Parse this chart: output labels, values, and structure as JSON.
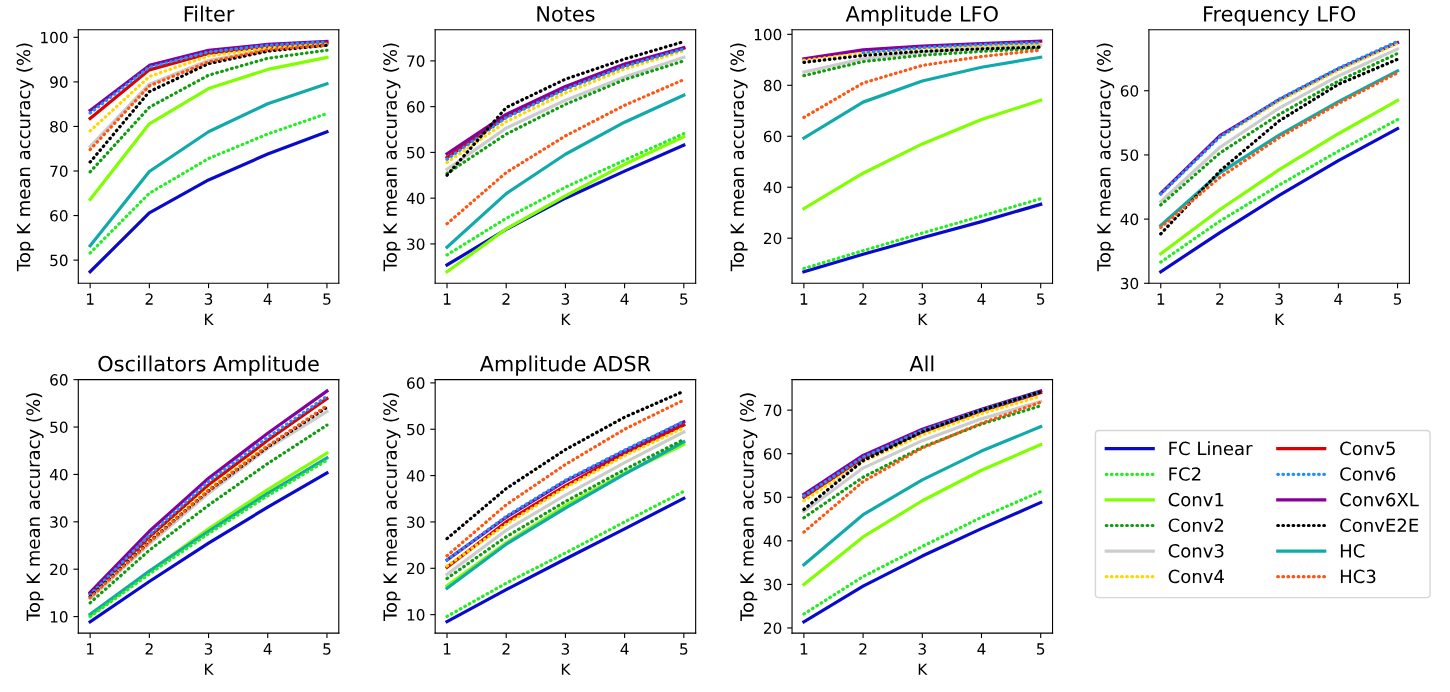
{
  "chart_data": [
    {
      "type": "line",
      "title": "Filter",
      "xlabel": "K",
      "ylabel": "Top K mean accuracy (%)",
      "x": [
        1,
        2,
        3,
        4,
        5
      ],
      "xlim": [
        0.8,
        5.2
      ],
      "xticks": [
        1,
        2,
        3,
        4,
        5
      ],
      "ylim": [
        44.8,
        101.7
      ],
      "yticks": [
        50,
        60,
        70,
        80,
        90,
        100
      ],
      "marker": "none",
      "series": [
        {
          "color": "#0a0acc",
          "line_style": "solid",
          "values": [
            47.4,
            60.6,
            68,
            73.8,
            78.8
          ]
        },
        {
          "color": "#22ee22",
          "line_style": "dotted",
          "values": [
            51.6,
            65,
            72.8,
            78.3,
            82.9
          ]
        },
        {
          "color": "#7fff00",
          "line_style": "solid",
          "values": [
            63.6,
            80.6,
            88.5,
            92.8,
            95.5
          ]
        },
        {
          "color": "#0f9d0f",
          "line_style": "dotted",
          "values": [
            69.8,
            84.3,
            91.5,
            95.3,
            97.1
          ]
        },
        {
          "color": "#cccccc",
          "line_style": "solid",
          "values": [
            75.5,
            89.5,
            94.8,
            97.2,
            98.3
          ]
        },
        {
          "color": "#ffd700",
          "line_style": "dotted",
          "values": [
            79,
            91.2,
            95.8,
            97.6,
            98.5
          ]
        },
        {
          "color": "#dd0000",
          "line_style": "solid",
          "values": [
            81.8,
            92.7,
            96.4,
            97.9,
            98.7
          ]
        },
        {
          "color": "#1e90ff",
          "line_style": "dotted",
          "values": [
            83,
            93.3,
            96.7,
            98.2,
            99
          ]
        },
        {
          "color": "#880099",
          "line_style": "solid",
          "values": [
            83.6,
            93.7,
            97.1,
            98.4,
            99.1
          ]
        },
        {
          "color": "#000000",
          "line_style": "dotted",
          "values": [
            72,
            87.8,
            94.1,
            96.9,
            98.2
          ]
        },
        {
          "color": "#11aaaa",
          "line_style": "solid",
          "values": [
            53.2,
            69.9,
            78.8,
            85.1,
            89.6
          ]
        },
        {
          "color": "#ff5511",
          "line_style": "dotted",
          "values": [
            74.8,
            89.1,
            94.5,
            97.2,
            98.2
          ]
        }
      ]
    },
    {
      "type": "line",
      "title": "Notes",
      "xlabel": "K",
      "ylabel": "Top K mean accuracy (%)",
      "x": [
        1,
        2,
        3,
        4,
        5
      ],
      "xlim": [
        0.8,
        5.2
      ],
      "xticks": [
        1,
        2,
        3,
        4,
        5
      ],
      "ylim": [
        21.4,
        76.8
      ],
      "yticks": [
        30,
        40,
        50,
        60,
        70
      ],
      "marker": "none",
      "series": [
        {
          "color": "#0a0acc",
          "line_style": "solid",
          "values": [
            25.4,
            33.2,
            40,
            45.9,
            51.6
          ]
        },
        {
          "color": "#22ee22",
          "line_style": "dotted",
          "values": [
            27.6,
            35.6,
            42.4,
            48.3,
            54.1
          ]
        },
        {
          "color": "#7fff00",
          "line_style": "solid",
          "values": [
            23.9,
            33.3,
            40.5,
            47.4,
            53.4
          ]
        },
        {
          "color": "#0f9d0f",
          "line_style": "dotted",
          "values": [
            45.4,
            54,
            60.5,
            65.9,
            70
          ]
        },
        {
          "color": "#cccccc",
          "line_style": "solid",
          "values": [
            46.3,
            55.3,
            61.4,
            66.5,
            70.8
          ]
        },
        {
          "color": "#ffd700",
          "line_style": "dotted",
          "values": [
            47.8,
            56.7,
            63,
            68.2,
            72.2
          ]
        },
        {
          "color": "#dd0000",
          "line_style": "solid",
          "values": [
            48.9,
            57.8,
            64,
            69,
            72.8
          ]
        },
        {
          "color": "#1e90ff",
          "line_style": "dotted",
          "values": [
            48.5,
            57.6,
            63.8,
            68.8,
            72.6
          ]
        },
        {
          "color": "#880099",
          "line_style": "solid",
          "values": [
            49.7,
            58.3,
            64.4,
            69.3,
            72.9
          ]
        },
        {
          "color": "#000000",
          "line_style": "dotted",
          "values": [
            45,
            59.8,
            66,
            70.4,
            74.2
          ]
        },
        {
          "color": "#11aaaa",
          "line_style": "solid",
          "values": [
            29.3,
            41,
            49.6,
            56.6,
            62.5
          ]
        },
        {
          "color": "#ff5511",
          "line_style": "dotted",
          "values": [
            34.4,
            45.6,
            53.6,
            60.3,
            65.9
          ]
        }
      ]
    },
    {
      "type": "line",
      "title": "Amplitude LFO",
      "xlabel": "K",
      "ylabel": "Top K mean accuracy (%)",
      "x": [
        1,
        2,
        3,
        4,
        5
      ],
      "xlim": [
        0.8,
        5.2
      ],
      "xticks": [
        1,
        2,
        3,
        4,
        5
      ],
      "ylim": [
        2.3,
        101.8
      ],
      "yticks": [
        20,
        40,
        60,
        80,
        100
      ],
      "marker": "none",
      "series": [
        {
          "color": "#0a0acc",
          "line_style": "solid",
          "values": [
            6.8,
            13.7,
            20.2,
            26.5,
            33.3
          ]
        },
        {
          "color": "#22ee22",
          "line_style": "dotted",
          "values": [
            8.1,
            15.1,
            22,
            28.7,
            35.5
          ]
        },
        {
          "color": "#7fff00",
          "line_style": "solid",
          "values": [
            31.6,
            45.5,
            57,
            66.6,
            74.1
          ]
        },
        {
          "color": "#0f9d0f",
          "line_style": "dotted",
          "values": [
            83.8,
            89.3,
            91.8,
            93.3,
            94.5
          ]
        },
        {
          "color": "#cccccc",
          "line_style": "solid",
          "values": [
            85.2,
            90.4,
            93,
            94.8,
            95.8
          ]
        },
        {
          "color": "#ffd700",
          "line_style": "dotted",
          "values": [
            89.8,
            92.5,
            94,
            95.3,
            96.3
          ]
        },
        {
          "color": "#dd0000",
          "line_style": "solid",
          "values": [
            null,
            null,
            null,
            null,
            null
          ]
        },
        {
          "color": "#1e90ff",
          "line_style": "dotted",
          "values": [
            null,
            92.8,
            94.8,
            96,
            96.8
          ]
        },
        {
          "color": "#880099",
          "line_style": "solid",
          "values": [
            90.4,
            93.9,
            95.4,
            96.4,
            97.3
          ]
        },
        {
          "color": "#000000",
          "line_style": "dotted",
          "values": [
            89,
            91.7,
            93.3,
            94.3,
            95
          ]
        },
        {
          "color": "#11aaaa",
          "line_style": "solid",
          "values": [
            59.3,
            73.4,
            81.7,
            87.1,
            91
          ]
        },
        {
          "color": "#ff5511",
          "line_style": "dotted",
          "values": [
            67.4,
            80.9,
            87.8,
            91.3,
            93.8
          ]
        }
      ]
    },
    {
      "type": "line",
      "title": "Frequency LFO",
      "xlabel": "K",
      "ylabel": "Top K mean accuracy (%)",
      "x": [
        1,
        2,
        3,
        4,
        5
      ],
      "xlim": [
        0.8,
        5.2
      ],
      "xticks": [
        1,
        2,
        3,
        4,
        5
      ],
      "ylim": [
        30.0,
        69.5
      ],
      "yticks": [
        30,
        40,
        50,
        60
      ],
      "marker": "none",
      "series": [
        {
          "color": "#0a0acc",
          "line_style": "solid",
          "values": [
            31.8,
            37.9,
            43.7,
            49.1,
            54.1
          ]
        },
        {
          "color": "#22ee22",
          "line_style": "dotted",
          "values": [
            33.3,
            39.7,
            45.3,
            50.6,
            55.5
          ]
        },
        {
          "color": "#7fff00",
          "line_style": "solid",
          "values": [
            34.6,
            41.5,
            47.7,
            53.3,
            58.5
          ]
        },
        {
          "color": "#0f9d0f",
          "line_style": "dotted",
          "values": [
            42.2,
            50.3,
            56.3,
            61.5,
            65.8
          ]
        },
        {
          "color": "#cccccc",
          "line_style": "solid",
          "values": [
            42.7,
            51.2,
            57.3,
            62.3,
            66.5
          ]
        },
        {
          "color": "#ffd700",
          "line_style": "dotted",
          "values": [
            null,
            52.7,
            58.4,
            63.2,
            67.4
          ]
        },
        {
          "color": "#dd0000",
          "line_style": "solid",
          "values": [
            null,
            null,
            null,
            null,
            null
          ]
        },
        {
          "color": "#1e90ff",
          "line_style": "dotted",
          "values": [
            43.9,
            52.8,
            58.7,
            63.5,
            67.7
          ]
        },
        {
          "color": "#880099",
          "line_style": "solid",
          "values": [
            44,
            53,
            58.6,
            63.4,
            67.5
          ]
        },
        {
          "color": "#000000",
          "line_style": "dotted",
          "values": [
            37.7,
            47.5,
            55.3,
            61,
            64.9
          ]
        },
        {
          "color": "#11aaaa",
          "line_style": "solid",
          "values": [
            39,
            47.2,
            53.1,
            58.3,
            63.1
          ]
        },
        {
          "color": "#ff5511",
          "line_style": "dotted",
          "values": [
            38.7,
            46.5,
            52.7,
            58,
            62.8
          ]
        }
      ]
    },
    {
      "type": "line",
      "title": "Oscillators Amplitude",
      "xlabel": "K",
      "ylabel": "Top K mean accuracy (%)",
      "x": [
        1,
        2,
        3,
        4,
        5
      ],
      "xlim": [
        0.8,
        5.2
      ],
      "xticks": [
        1,
        2,
        3,
        4,
        5
      ],
      "ylim": [
        6.5,
        60.0
      ],
      "yticks": [
        10,
        20,
        30,
        40,
        50,
        60
      ],
      "marker": "none",
      "series": [
        {
          "color": "#0a0acc",
          "line_style": "solid",
          "values": [
            8.9,
            17.4,
            25.5,
            33.1,
            40.3
          ]
        },
        {
          "color": "#22ee22",
          "line_style": "dotted",
          "values": [
            10,
            19,
            27.5,
            35.5,
            43
          ]
        },
        {
          "color": "#7fff00",
          "line_style": "solid",
          "values": [
            10.2,
            19.5,
            28.5,
            36.8,
            44.5
          ]
        },
        {
          "color": "#0f9d0f",
          "line_style": "dotted",
          "values": [
            12.9,
            24,
            33.5,
            42.3,
            50.4
          ]
        },
        {
          "color": "#cccccc",
          "line_style": "solid",
          "values": [
            13.8,
            25.3,
            36,
            45.5,
            53.3
          ]
        },
        {
          "color": "#ffd700",
          "line_style": "dotted",
          "values": [
            null,
            26,
            37,
            46.2,
            null
          ]
        },
        {
          "color": "#dd0000",
          "line_style": "solid",
          "values": [
            14.8,
            26.8,
            37.8,
            47.2,
            56
          ]
        },
        {
          "color": "#1e90ff",
          "line_style": "dotted",
          "values": [
            14.6,
            27.2,
            38.5,
            47.8,
            56.5
          ]
        },
        {
          "color": "#880099",
          "line_style": "solid",
          "values": [
            15.1,
            28,
            39.2,
            48.7,
            57.6
          ]
        },
        {
          "color": "#000000",
          "line_style": "dotted",
          "values": [
            14.2,
            25.8,
            36.5,
            45.8,
            54.2
          ]
        },
        {
          "color": "#11aaaa",
          "line_style": "solid",
          "values": [
            10.5,
            19.6,
            28,
            36,
            43.5
          ]
        },
        {
          "color": "#ff5511",
          "line_style": "dotted",
          "values": [
            14,
            25.7,
            36.6,
            46,
            54.5
          ]
        }
      ]
    },
    {
      "type": "line",
      "title": "Amplitude ADSR",
      "xlabel": "K",
      "ylabel": "Top K mean accuracy (%)",
      "x": [
        1,
        2,
        3,
        4,
        5
      ],
      "xlim": [
        0.8,
        5.2
      ],
      "xticks": [
        1,
        2,
        3,
        4,
        5
      ],
      "ylim": [
        6.0,
        60.7
      ],
      "yticks": [
        10,
        20,
        30,
        40,
        50,
        60
      ],
      "marker": "none",
      "series": [
        {
          "color": "#0a0acc",
          "line_style": "solid",
          "values": [
            8.5,
            15.4,
            22,
            28.5,
            35.1
          ]
        },
        {
          "color": "#22ee22",
          "line_style": "dotted",
          "values": [
            9.6,
            16.8,
            23.3,
            30,
            36.6
          ]
        },
        {
          "color": "#7fff00",
          "line_style": "solid",
          "values": [
            16.2,
            25.5,
            33.5,
            40.5,
            46.7
          ]
        },
        {
          "color": "#0f9d0f",
          "line_style": "dotted",
          "values": [
            17.8,
            26.8,
            34.4,
            41.3,
            47.8
          ]
        },
        {
          "color": "#cccccc",
          "line_style": "solid",
          "values": [
            18.7,
            28.2,
            35.8,
            42.8,
            49.4
          ]
        },
        {
          "color": "#ffd700",
          "line_style": "dotted",
          "values": [
            20.5,
            29.5,
            37.4,
            44.3,
            50.3
          ]
        },
        {
          "color": "#dd0000",
          "line_style": "solid",
          "values": [
            20.2,
            30,
            37.8,
            44.8,
            50.9
          ]
        },
        {
          "color": "#1e90ff",
          "line_style": "dotted",
          "values": [
            21.8,
            31.2,
            39,
            45.5,
            51.7
          ]
        },
        {
          "color": "#880099",
          "line_style": "solid",
          "values": [
            21.8,
            31,
            38.8,
            45.3,
            51.6
          ]
        },
        {
          "color": "#000000",
          "line_style": "dotted",
          "values": [
            26.4,
            37.2,
            45.6,
            52.6,
            58.2
          ]
        },
        {
          "color": "#11aaaa",
          "line_style": "solid",
          "values": [
            15.7,
            25.2,
            33,
            40.3,
            47.3
          ]
        },
        {
          "color": "#ff5511",
          "line_style": "dotted",
          "values": [
            22.7,
            33.7,
            42.4,
            50,
            56.3
          ]
        }
      ]
    },
    {
      "type": "line",
      "title": "All",
      "xlabel": "K",
      "ylabel": "Top K mean accuracy (%)",
      "x": [
        1,
        2,
        3,
        4,
        5
      ],
      "xlim": [
        0.8,
        5.2
      ],
      "xticks": [
        1,
        2,
        3,
        4,
        5
      ],
      "ylim": [
        18.8,
        77.0
      ],
      "yticks": [
        20,
        30,
        40,
        50,
        60,
        70
      ],
      "legend": "right",
      "marker": "none",
      "series": [
        {
          "name": "FC Linear",
          "color": "#0a0acc",
          "line_style": "solid",
          "values": [
            21.4,
            29.6,
            36.5,
            42.8,
            48.8
          ]
        },
        {
          "name": "FC2",
          "color": "#22ee22",
          "line_style": "dotted",
          "values": [
            23.2,
            31.8,
            38.7,
            45.4,
            51.3
          ]
        },
        {
          "name": "Conv1",
          "color": "#7fff00",
          "line_style": "solid",
          "values": [
            30,
            40.9,
            49.2,
            56.2,
            62.1
          ]
        },
        {
          "name": "Conv2",
          "color": "#0f9d0f",
          "line_style": "dotted",
          "values": [
            45.3,
            54.6,
            61.5,
            66.8,
            71
          ]
        },
        {
          "name": "Conv3",
          "color": "#cccccc",
          "line_style": "solid",
          "values": [
            46.7,
            56.7,
            63,
            68,
            72
          ]
        },
        {
          "name": "Conv4",
          "color": "#ffd700",
          "line_style": "dotted",
          "values": [
            49.2,
            58.2,
            64.3,
            69.2,
            73.2
          ]
        },
        {
          "name": "Conv5",
          "color": "#dd0000",
          "line_style": "solid",
          "values": [
            50,
            59,
            65,
            69.8,
            74
          ]
        },
        {
          "name": "Conv6",
          "color": "#1e90ff",
          "line_style": "dotted",
          "values": [
            50.3,
            59.2,
            65.3,
            70,
            74.2
          ]
        },
        {
          "name": "Conv6XL",
          "color": "#880099",
          "line_style": "solid",
          "values": [
            50.7,
            59.6,
            65.6,
            70.2,
            74.4
          ]
        },
        {
          "name": "ConvE2E",
          "color": "#000000",
          "line_style": "dotted",
          "values": [
            47.2,
            58.4,
            65,
            70,
            74.2
          ]
        },
        {
          "name": "HC",
          "color": "#11aaaa",
          "line_style": "solid",
          "values": [
            34.5,
            46,
            54,
            60.6,
            66.2
          ]
        },
        {
          "name": "HC3",
          "color": "#ff5511",
          "line_style": "dotted",
          "values": [
            42,
            53.6,
            61.3,
            67,
            71.8
          ]
        }
      ]
    }
  ]
}
